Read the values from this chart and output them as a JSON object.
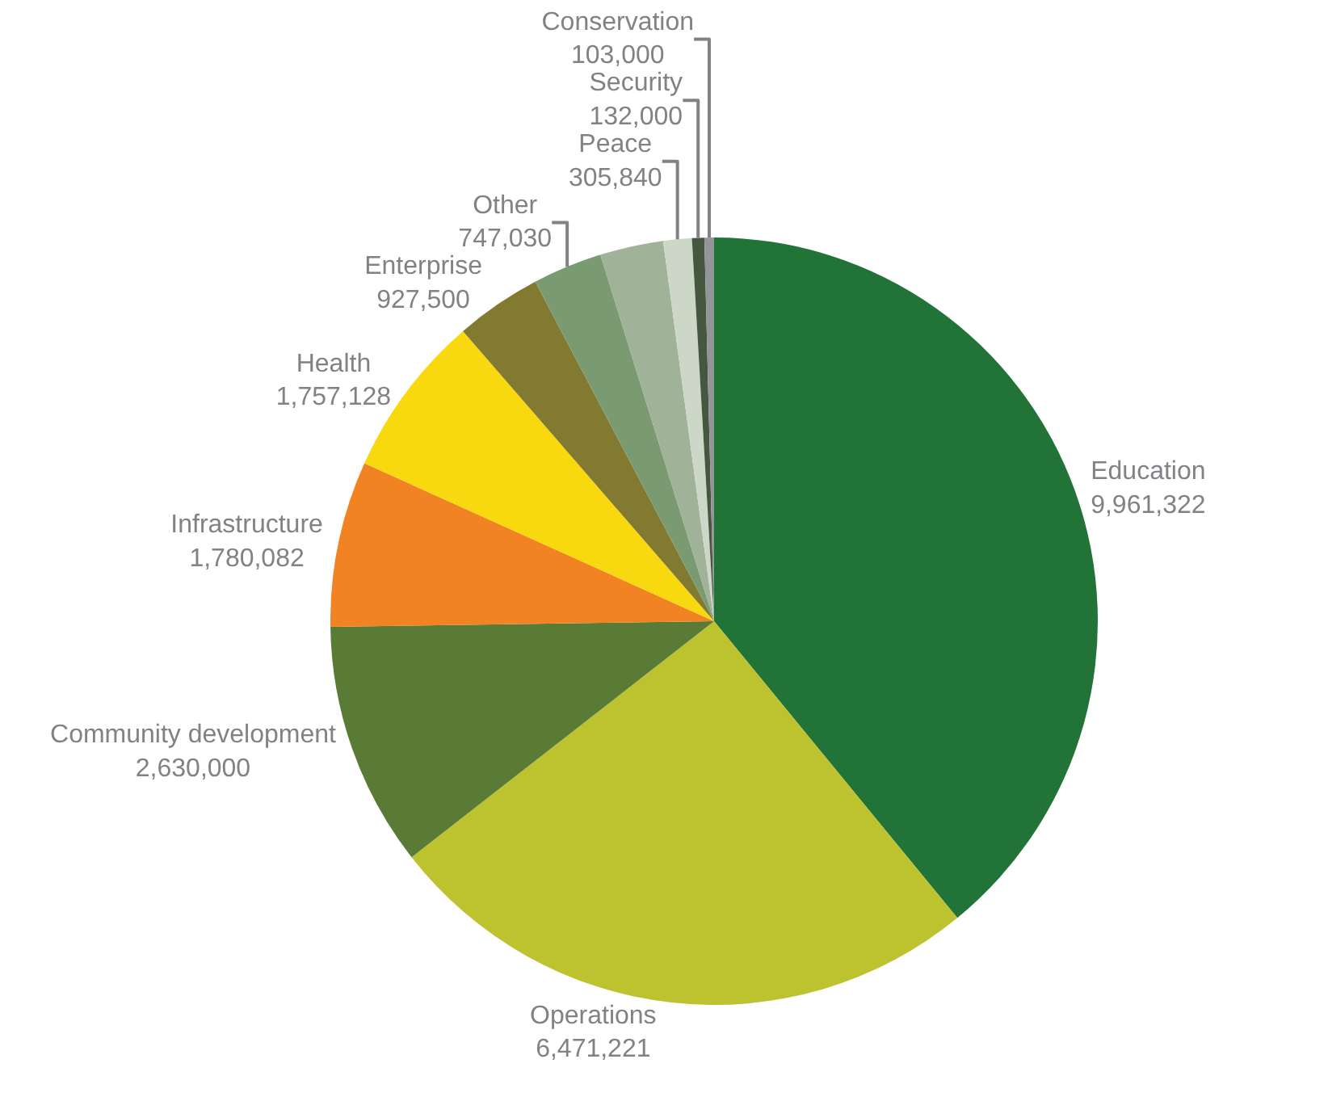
{
  "chart_data": {
    "type": "pie",
    "categories": [
      "Education",
      "Operations",
      "Community development",
      "Infrastructure",
      "Health",
      "Enterprise",
      "Other",
      null,
      "Peace",
      "Security",
      "Conservation"
    ],
    "values": [
      9961322,
      6471221,
      2630000,
      1780082,
      1757128,
      927500,
      747030,
      680000,
      305840,
      132000,
      103000
    ],
    "value_labels": [
      "9,961,322",
      "6,471,221",
      "2,630,000",
      "1,780,082",
      "1,757,128",
      "927,500",
      "747,030",
      null,
      "305,840",
      "132,000",
      "103,000"
    ],
    "colors": [
      "#217338",
      "#bdc22f",
      "#5a7b35",
      "#f28322",
      "#f8d90f",
      "#837a31",
      "#7a9a72",
      "#a0b398",
      "#cdd7c8",
      "#45573f",
      "#939598"
    ],
    "legend": false
  }
}
